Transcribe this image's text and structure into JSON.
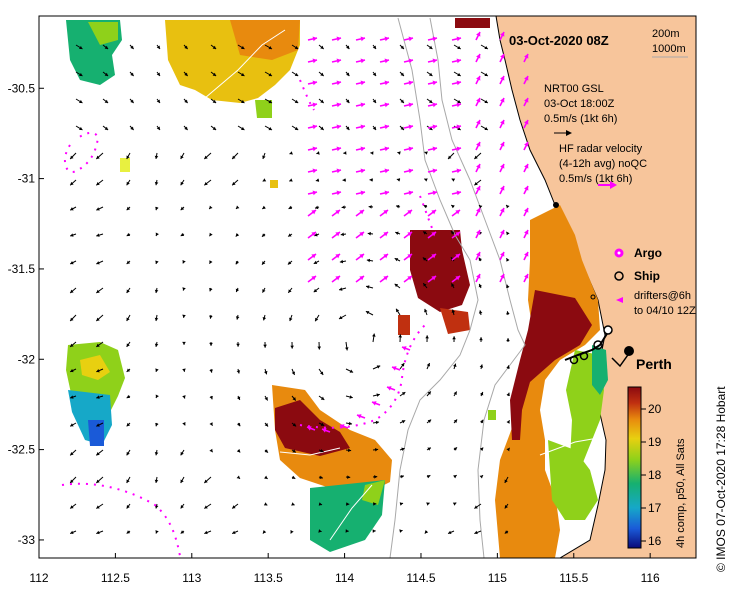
{
  "map": {
    "title": "03-Oct-2020 08Z",
    "credit": "© IMOS 07-Oct-2020 17:28 Hobart",
    "city": "Perth",
    "isobaths": [
      "200m",
      "1000m"
    ],
    "x_ticks": [
      "112",
      "112.5",
      "113",
      "113.5",
      "114",
      "114.5",
      "115",
      "115.5",
      "116"
    ],
    "y_ticks": [
      "-30.5",
      "-31",
      "-31.5",
      "-32",
      "-32.5",
      "-33"
    ],
    "xlim": [
      112,
      116.3
    ],
    "ylim": [
      -33.1,
      -30.1
    ]
  },
  "legend": {
    "gsl": [
      "NRT00 GSL",
      "03-Oct 18:00Z",
      "0.5m/s (1kt 6h)"
    ],
    "hf": [
      "HF radar velocity",
      "(4-12h avg) noQC",
      "0.5m/s (1kt 6h)"
    ],
    "argo": "Argo",
    "ship": "Ship",
    "drifters": [
      "drifters@6h",
      "to 04/10 12Z"
    ]
  },
  "colorbar": {
    "label": "4h comp, p50, All Sats",
    "ticks": [
      "20",
      "19",
      "18",
      "17",
      "16"
    ],
    "colors": {
      "c20": "#8b0a10",
      "c19": "#e88a0e",
      "c18": "#8fd11a",
      "c17": "#16b070",
      "c16": "#1a5ad8",
      "c15": "#0a0a7a"
    }
  },
  "colors": {
    "land": "#f7c59b",
    "gsl": "#000000",
    "hf": "#ff00ff",
    "isobath": "#a8a8a8"
  }
}
